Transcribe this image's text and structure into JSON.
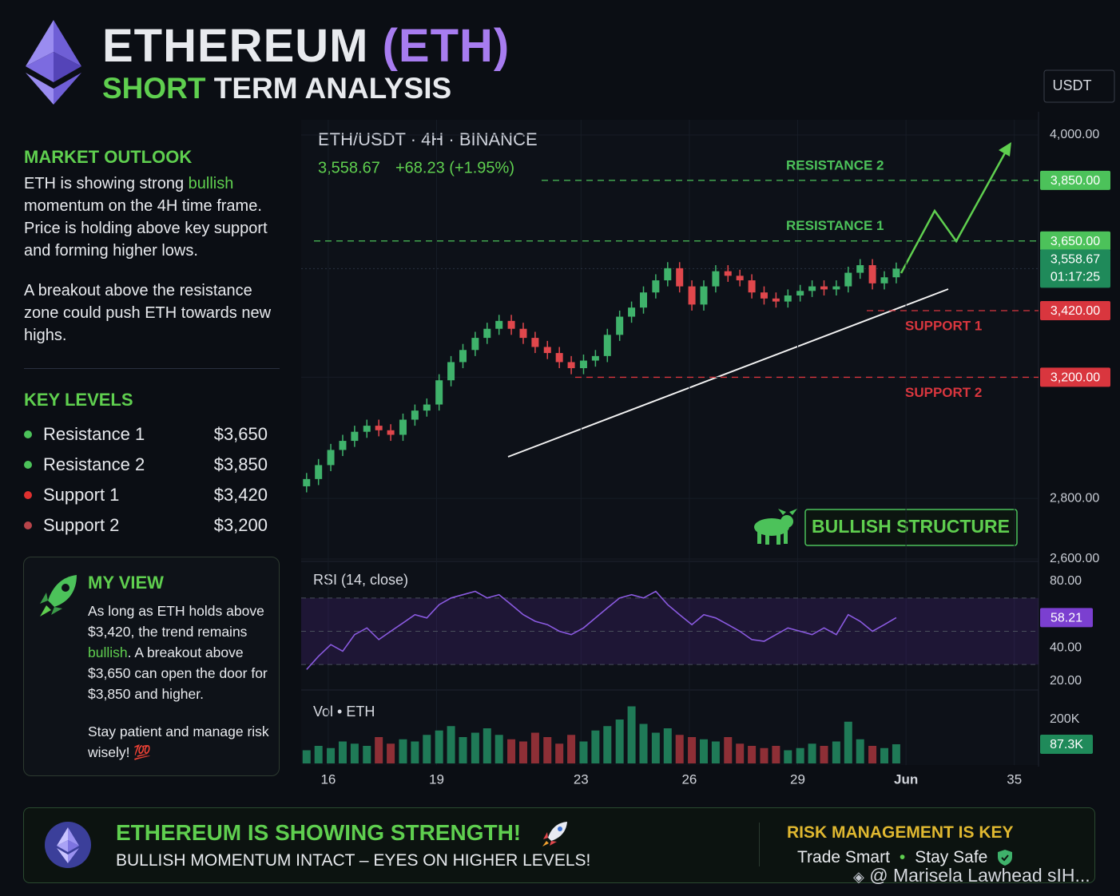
{
  "header": {
    "title_main": "ETHEREUM",
    "title_ticker": "(ETH)",
    "subtitle_accent": "SHORT",
    "subtitle_rest": "TERM ANALYSIS"
  },
  "sidebar": {
    "outlook_title": "MARKET OUTLOOK",
    "outlook_p1": [
      "ETH is showing strong ",
      "bullish",
      " momentum on the 4H time frame. Price is holding above key support and forming higher lows."
    ],
    "outlook_p2": "A breakout above the resistance zone could push ETH towards new highs.",
    "levels_title": "KEY LEVELS",
    "key_levels": [
      {
        "name": "Resistance 1",
        "value": "$3,650",
        "color": "#4cc25a"
      },
      {
        "name": "Resistance 2",
        "value": "$3,850",
        "color": "#4cc25a"
      },
      {
        "name": "Support 1",
        "value": "$3,420",
        "color": "#e0302f"
      },
      {
        "name": "Support 2",
        "value": "$3,200",
        "color": "#b8444a"
      }
    ],
    "view_title": "MY VIEW",
    "view_p1": [
      "As long as ETH holds above $3,420, the trend remains ",
      "bullish",
      ". A breakout above $3,650 can open the door for $3,850 and higher."
    ],
    "view_p2": "Stay patient and manage risk wisely! 💯"
  },
  "chart_header": {
    "pair": "ETH/USDT · 4H · BINANCE",
    "change": "+68.23 (+1.95%)",
    "currency": "USDT",
    "badge": "BULLISH STRUCTURE"
  },
  "chart_data": [
    {
      "type": "candlestick",
      "up_color": "#3fb26b",
      "down_color": "#e0474c",
      "grid": true,
      "x": [
        15.4,
        15.73,
        16.07,
        16.4,
        16.73,
        17.07,
        17.4,
        17.73,
        18.07,
        18.4,
        18.73,
        19.07,
        19.4,
        19.73,
        20.07,
        20.4,
        20.73,
        21.07,
        21.4,
        21.73,
        22.07,
        22.4,
        22.73,
        23.07,
        23.4,
        23.73,
        24.07,
        24.4,
        24.73,
        25.07,
        25.4,
        25.73,
        26.07,
        26.4,
        26.73,
        27.07,
        27.4,
        27.73,
        28.07,
        28.4,
        28.73,
        29.07,
        29.4,
        29.73,
        30.07,
        30.4,
        30.73,
        31.07,
        31.4,
        31.73
      ],
      "open": [
        2840,
        2864,
        2910,
        2960,
        2990,
        3020,
        3040,
        3025,
        3010,
        3060,
        3090,
        3110,
        3190,
        3250,
        3290,
        3330,
        3360,
        3386,
        3360,
        3330,
        3300,
        3280,
        3250,
        3230,
        3255,
        3270,
        3340,
        3400,
        3430,
        3480,
        3520,
        3560,
        3500,
        3440,
        3500,
        3550,
        3535,
        3520,
        3480,
        3460,
        3450,
        3470,
        3485,
        3500,
        3490,
        3500,
        3545,
        3570,
        3510,
        3530
      ],
      "high": [
        2884,
        2930,
        2980,
        3010,
        3040,
        3060,
        3060,
        3045,
        3080,
        3110,
        3130,
        3210,
        3270,
        3310,
        3350,
        3380,
        3406,
        3406,
        3380,
        3350,
        3320,
        3300,
        3270,
        3275,
        3290,
        3360,
        3420,
        3450,
        3500,
        3540,
        3580,
        3580,
        3520,
        3520,
        3570,
        3570,
        3555,
        3540,
        3500,
        3480,
        3490,
        3505,
        3520,
        3520,
        3520,
        3565,
        3590,
        3590,
        3550,
        3578.67
      ],
      "low": [
        2820,
        2844,
        2890,
        2940,
        2970,
        3000,
        3005,
        2990,
        2990,
        3040,
        3070,
        3090,
        3170,
        3230,
        3270,
        3310,
        3340,
        3340,
        3310,
        3280,
        3260,
        3230,
        3210,
        3210,
        3235,
        3250,
        3320,
        3380,
        3410,
        3460,
        3500,
        3480,
        3420,
        3420,
        3480,
        3515,
        3500,
        3460,
        3440,
        3430,
        3430,
        3450,
        3465,
        3470,
        3470,
        3480,
        3525,
        3490,
        3490,
        3510
      ],
      "close": [
        2864,
        2910,
        2960,
        2990,
        3020,
        3040,
        3025,
        3010,
        3060,
        3090,
        3110,
        3190,
        3250,
        3290,
        3330,
        3360,
        3386,
        3360,
        3330,
        3300,
        3280,
        3250,
        3230,
        3255,
        3270,
        3340,
        3400,
        3430,
        3480,
        3520,
        3560,
        3500,
        3440,
        3500,
        3550,
        3535,
        3520,
        3480,
        3460,
        3450,
        3470,
        3485,
        3500,
        3490,
        3500,
        3545,
        3570,
        3510,
        3530,
        3558.67
      ],
      "last_label": "3,558.67",
      "timer": "01:17:25",
      "last_color": "#1f8a5a",
      "xlim": [
        15.25,
        35.67
      ],
      "xticks": [
        16,
        19,
        23,
        26,
        29,
        {
          "value": 32,
          "label": "Jun"
        },
        35
      ],
      "ylim": [
        2600,
        4050
      ],
      "yticks": [
        {
          "value": 4000,
          "label": "4,000.00"
        },
        {
          "value": 3200,
          "label": "3,200.00"
        },
        {
          "value": 2800,
          "label": "2,800.00"
        },
        {
          "value": 2600,
          "label": "2,600.00"
        }
      ],
      "levels": [
        {
          "name": "RESISTANCE 2",
          "value": 3850,
          "label": "3,850.00",
          "color": "#4cc25a"
        },
        {
          "name": "RESISTANCE 1",
          "value": 3650,
          "label": "3,650.00",
          "color": "#4cc25a"
        },
        {
          "name": "SUPPORT 1",
          "value": 3420,
          "label": "3,420.00",
          "color": "#d9363e"
        },
        {
          "name": "SUPPORT 2",
          "value": 3200,
          "label": "3,200.00",
          "color": "#d9363e"
        }
      ]
    },
    {
      "type": "line",
      "title": "RSI (14, close)",
      "color": "#8a5ae0",
      "tag_color": "#7b3fd0",
      "values": [
        27,
        35,
        42,
        38,
        48,
        52,
        45,
        50,
        55,
        60,
        58,
        66,
        70,
        72,
        74,
        70,
        72,
        66,
        60,
        56,
        54,
        50,
        48,
        52,
        58,
        64,
        70,
        72,
        70,
        74,
        66,
        60,
        54,
        60,
        58,
        54,
        50,
        45,
        44,
        48,
        52,
        50,
        48,
        52,
        48,
        60,
        56,
        50,
        54,
        58.21
      ],
      "ylim": [
        20,
        80
      ],
      "levels": [
        70,
        50,
        30
      ],
      "yticks": [
        {
          "value": 80,
          "label": "80.00"
        },
        {
          "value": 40,
          "label": "40.00"
        },
        {
          "value": 20,
          "label": "20.00"
        }
      ]
    },
    {
      "type": "bar",
      "title": "Vol • ETH",
      "up_color": "#1f7a57",
      "down_color": "#8e2f36",
      "tag_color": "#1f8a5a",
      "values": [
        60000,
        80000,
        70000,
        100000,
        90000,
        80000,
        120000,
        90000,
        110000,
        100000,
        130000,
        150000,
        170000,
        120000,
        140000,
        160000,
        130000,
        110000,
        100000,
        140000,
        120000,
        90000,
        130000,
        100000,
        150000,
        170000,
        200000,
        260000,
        180000,
        140000,
        160000,
        130000,
        120000,
        110000,
        100000,
        120000,
        90000,
        80000,
        70000,
        80000,
        60000,
        70000,
        90000,
        80000,
        100000,
        190000,
        110000,
        80000,
        70000,
        87300
      ],
      "last_label": "87.3K",
      "ylim": [
        0,
        300000
      ],
      "yticks": [
        {
          "value": 200000,
          "label": "200K"
        }
      ]
    }
  ],
  "footer": {
    "headline": "ETHEREUM IS SHOWING STRENGTH!",
    "subline": "BULLISH MOMENTUM INTACT – EYES ON HIGHER LEVELS!",
    "risk_title": "RISK MANAGEMENT IS KEY",
    "tip1": "Trade Smart",
    "separator": "•",
    "tip2": "Stay Safe",
    "watermark": "@ Marisela Lawhead sIH..."
  }
}
